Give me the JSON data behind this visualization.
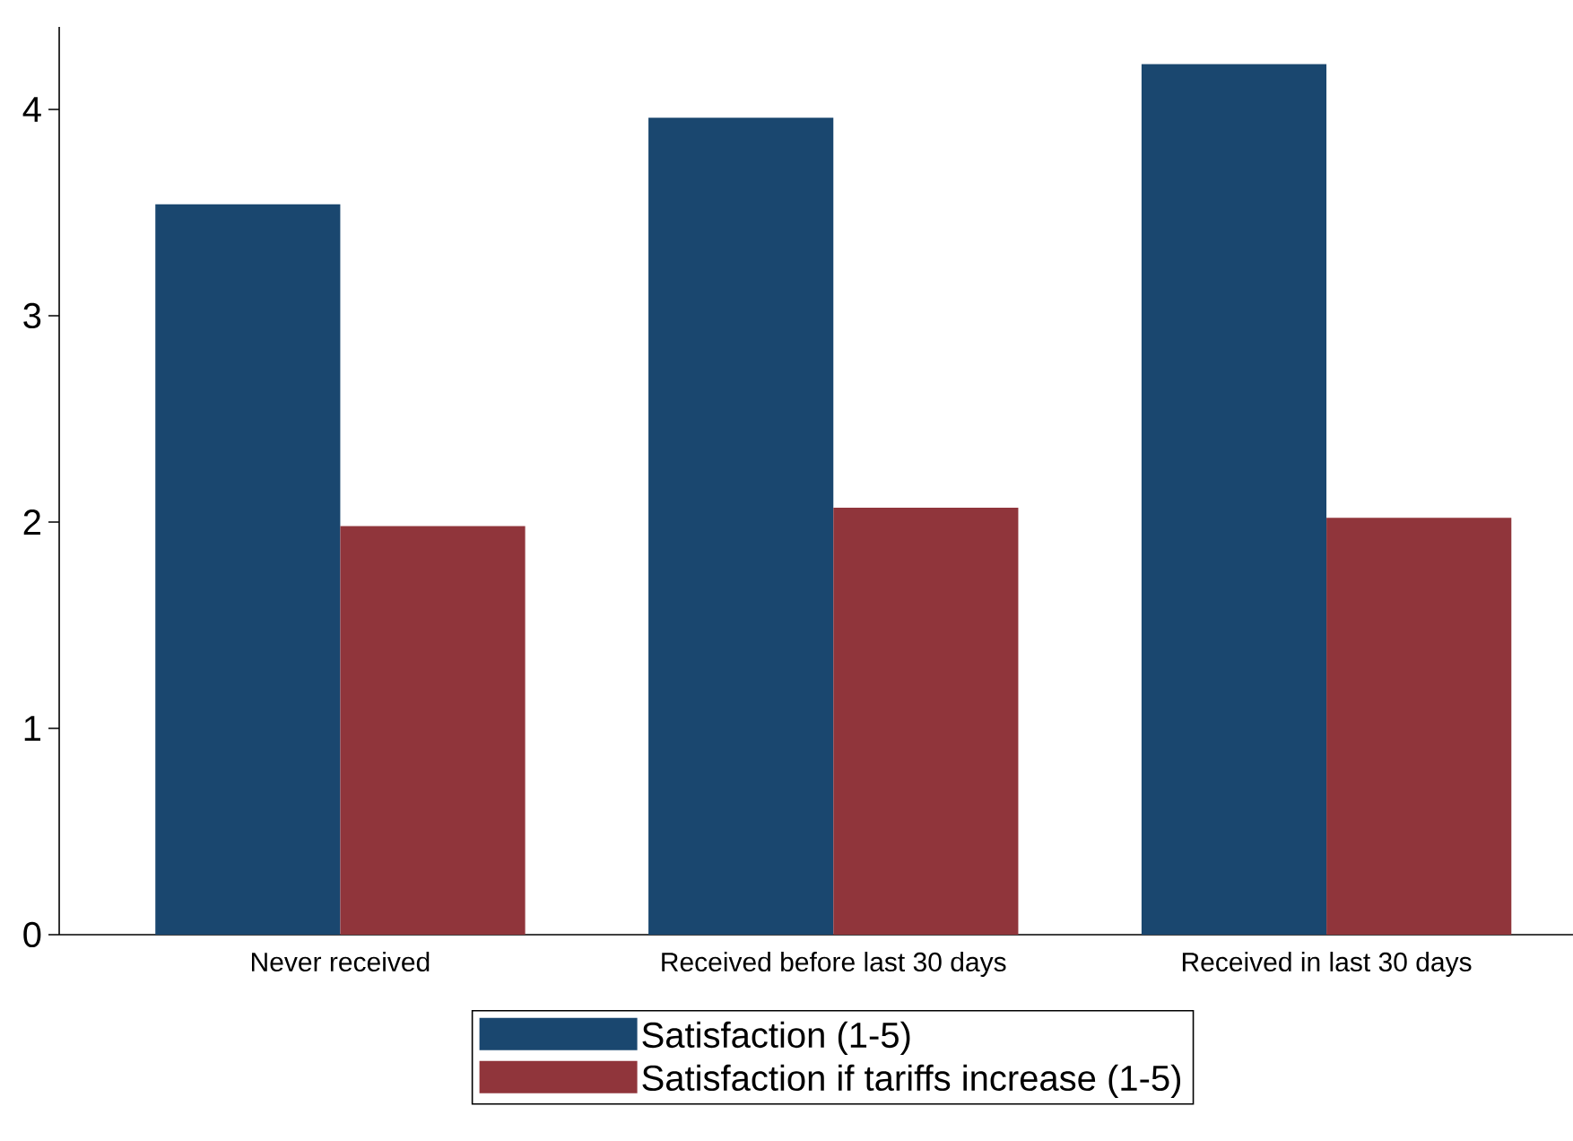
{
  "chart_data": {
    "type": "bar",
    "categories": [
      "Never received",
      "Received before last 30 days",
      "Received in last 30 days"
    ],
    "series": [
      {
        "name": "Satisfaction (1-5)",
        "color": "#1a476f",
        "values": [
          3.54,
          3.96,
          4.22
        ]
      },
      {
        "name": "Satisfaction if tariffs increase (1-5)",
        "color": "#90353b",
        "values": [
          1.98,
          2.07,
          2.02
        ]
      }
    ],
    "ylim": [
      0,
      4.4
    ],
    "yticks": [
      0,
      1,
      2,
      3,
      4
    ],
    "grid": false,
    "legend": "bottom"
  }
}
